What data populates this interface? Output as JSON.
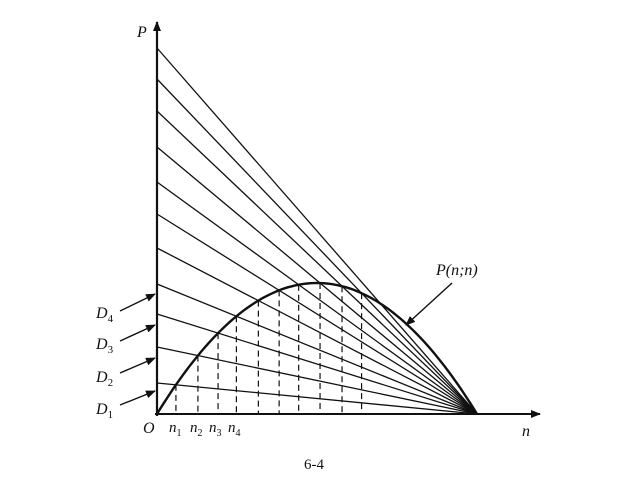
{
  "diagram": {
    "axis_y_label": "P",
    "axis_x_label": "n",
    "origin_label": "O",
    "curve_label": "P(n;n)",
    "d_labels": [
      {
        "main": "D",
        "sub": "1"
      },
      {
        "main": "D",
        "sub": "2"
      },
      {
        "main": "D",
        "sub": "3"
      },
      {
        "main": "D",
        "sub": "4"
      }
    ],
    "n_labels": [
      {
        "main": "n",
        "sub": "1"
      },
      {
        "main": "n",
        "sub": "2"
      },
      {
        "main": "n",
        "sub": "3"
      },
      {
        "main": "n",
        "sub": "4"
      }
    ],
    "caption": "6-4"
  }
}
